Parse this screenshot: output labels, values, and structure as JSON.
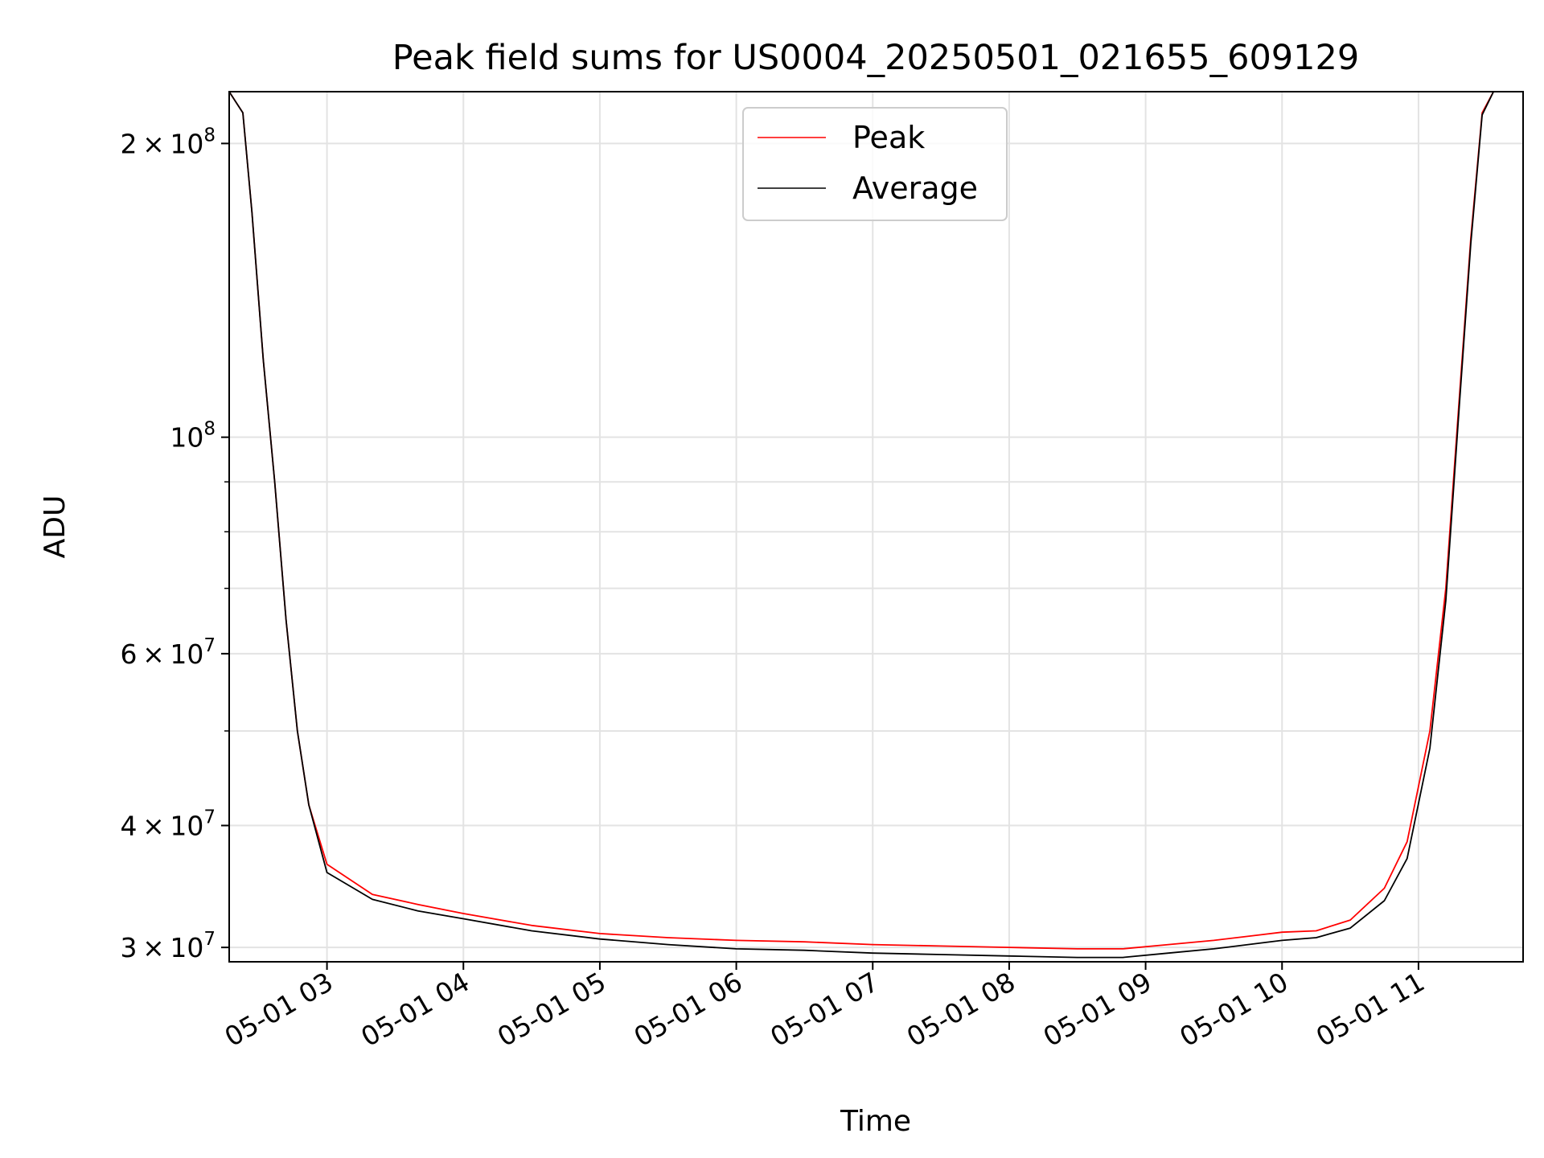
{
  "chart_data": {
    "type": "line",
    "title": "Peak field sums for US0004_20250501_021655_609129",
    "xlabel": "Time",
    "ylabel": "ADU",
    "x_range": [
      "2025-05-01T02:17:00",
      "2025-05-01T11:46:00"
    ],
    "y_range": [
      29000000,
      226000000
    ],
    "y_scale": "log",
    "grid": true,
    "legend_position": "top-center",
    "x_ticks": [
      {
        "time": "2025-05-01T03:00:00",
        "label": "05-01 03"
      },
      {
        "time": "2025-05-01T04:00:00",
        "label": "05-01 04"
      },
      {
        "time": "2025-05-01T05:00:00",
        "label": "05-01 05"
      },
      {
        "time": "2025-05-01T06:00:00",
        "label": "05-01 06"
      },
      {
        "time": "2025-05-01T07:00:00",
        "label": "05-01 07"
      },
      {
        "time": "2025-05-01T08:00:00",
        "label": "05-01 08"
      },
      {
        "time": "2025-05-01T09:00:00",
        "label": "05-01 09"
      },
      {
        "time": "2025-05-01T10:00:00",
        "label": "05-01 10"
      },
      {
        "time": "2025-05-01T11:00:00",
        "label": "05-01 11"
      }
    ],
    "y_ticks": [
      {
        "value": 200000000,
        "mantissa": "2",
        "exponent": "8"
      },
      {
        "value": 100000000,
        "mantissa": "",
        "exponent": "8"
      },
      {
        "value": 60000000,
        "mantissa": "6",
        "exponent": "7"
      },
      {
        "value": 40000000,
        "mantissa": "4",
        "exponent": "7"
      },
      {
        "value": 30000000,
        "mantissa": "3",
        "exponent": "7"
      }
    ],
    "y_minor_ticks": [
      50000000,
      70000000,
      80000000,
      90000000
    ],
    "series": [
      {
        "name": "Peak",
        "color": "#ff0000",
        "points": [
          [
            "2025-05-01T02:17:00",
            226000000
          ],
          [
            "2025-05-01T02:23:00",
            215000000
          ],
          [
            "2025-05-01T02:27:00",
            170000000
          ],
          [
            "2025-05-01T02:32:00",
            120000000
          ],
          [
            "2025-05-01T02:37:00",
            90000000
          ],
          [
            "2025-05-01T02:42:00",
            65000000
          ],
          [
            "2025-05-01T02:47:00",
            50000000
          ],
          [
            "2025-05-01T02:52:00",
            42000000
          ],
          [
            "2025-05-01T03:00:00",
            36500000
          ],
          [
            "2025-05-01T03:20:00",
            34000000
          ],
          [
            "2025-05-01T03:40:00",
            33200000
          ],
          [
            "2025-05-01T04:00:00",
            32500000
          ],
          [
            "2025-05-01T04:30:00",
            31600000
          ],
          [
            "2025-05-01T05:00:00",
            31000000
          ],
          [
            "2025-05-01T05:30:00",
            30700000
          ],
          [
            "2025-05-01T06:00:00",
            30500000
          ],
          [
            "2025-05-01T06:30:00",
            30400000
          ],
          [
            "2025-05-01T07:00:00",
            30200000
          ],
          [
            "2025-05-01T07:30:00",
            30100000
          ],
          [
            "2025-05-01T08:00:00",
            30000000
          ],
          [
            "2025-05-01T08:30:00",
            29900000
          ],
          [
            "2025-05-01T08:50:00",
            29900000
          ],
          [
            "2025-05-01T09:10:00",
            30200000
          ],
          [
            "2025-05-01T09:30:00",
            30500000
          ],
          [
            "2025-05-01T09:50:00",
            30900000
          ],
          [
            "2025-05-01T10:00:00",
            31100000
          ],
          [
            "2025-05-01T10:15:00",
            31200000
          ],
          [
            "2025-05-01T10:30:00",
            32000000
          ],
          [
            "2025-05-01T10:45:00",
            34500000
          ],
          [
            "2025-05-01T10:55:00",
            38500000
          ],
          [
            "2025-05-01T11:05:00",
            50000000
          ],
          [
            "2025-05-01T11:12:00",
            70000000
          ],
          [
            "2025-05-01T11:18:00",
            110000000
          ],
          [
            "2025-05-01T11:23:00",
            160000000
          ],
          [
            "2025-05-01T11:28:00",
            215000000
          ],
          [
            "2025-05-01T11:33:00",
            226000000
          ],
          [
            "2025-05-01T11:46:00",
            226000000
          ]
        ]
      },
      {
        "name": "Average",
        "color": "#000000",
        "points": [
          [
            "2025-05-01T02:17:00",
            226000000
          ],
          [
            "2025-05-01T02:23:00",
            215000000
          ],
          [
            "2025-05-01T02:27:00",
            170000000
          ],
          [
            "2025-05-01T02:32:00",
            120000000
          ],
          [
            "2025-05-01T02:37:00",
            90000000
          ],
          [
            "2025-05-01T02:42:00",
            65000000
          ],
          [
            "2025-05-01T02:47:00",
            50000000
          ],
          [
            "2025-05-01T02:52:00",
            42000000
          ],
          [
            "2025-05-01T03:00:00",
            35800000
          ],
          [
            "2025-05-01T03:20:00",
            33600000
          ],
          [
            "2025-05-01T03:40:00",
            32700000
          ],
          [
            "2025-05-01T04:00:00",
            32100000
          ],
          [
            "2025-05-01T04:30:00",
            31200000
          ],
          [
            "2025-05-01T05:00:00",
            30600000
          ],
          [
            "2025-05-01T05:30:00",
            30200000
          ],
          [
            "2025-05-01T06:00:00",
            29900000
          ],
          [
            "2025-05-01T06:30:00",
            29800000
          ],
          [
            "2025-05-01T07:00:00",
            29600000
          ],
          [
            "2025-05-01T07:30:00",
            29500000
          ],
          [
            "2025-05-01T08:00:00",
            29400000
          ],
          [
            "2025-05-01T08:30:00",
            29300000
          ],
          [
            "2025-05-01T08:50:00",
            29300000
          ],
          [
            "2025-05-01T09:10:00",
            29600000
          ],
          [
            "2025-05-01T09:30:00",
            29900000
          ],
          [
            "2025-05-01T09:50:00",
            30300000
          ],
          [
            "2025-05-01T10:00:00",
            30500000
          ],
          [
            "2025-05-01T10:15:00",
            30700000
          ],
          [
            "2025-05-01T10:30:00",
            31400000
          ],
          [
            "2025-05-01T10:45:00",
            33500000
          ],
          [
            "2025-05-01T10:55:00",
            37000000
          ],
          [
            "2025-05-01T11:05:00",
            48000000
          ],
          [
            "2025-05-01T11:12:00",
            68000000
          ],
          [
            "2025-05-01T11:18:00",
            108000000
          ],
          [
            "2025-05-01T11:23:00",
            158000000
          ],
          [
            "2025-05-01T11:28:00",
            214000000
          ],
          [
            "2025-05-01T11:33:00",
            226000000
          ],
          [
            "2025-05-01T11:46:00",
            226000000
          ]
        ]
      }
    ]
  }
}
